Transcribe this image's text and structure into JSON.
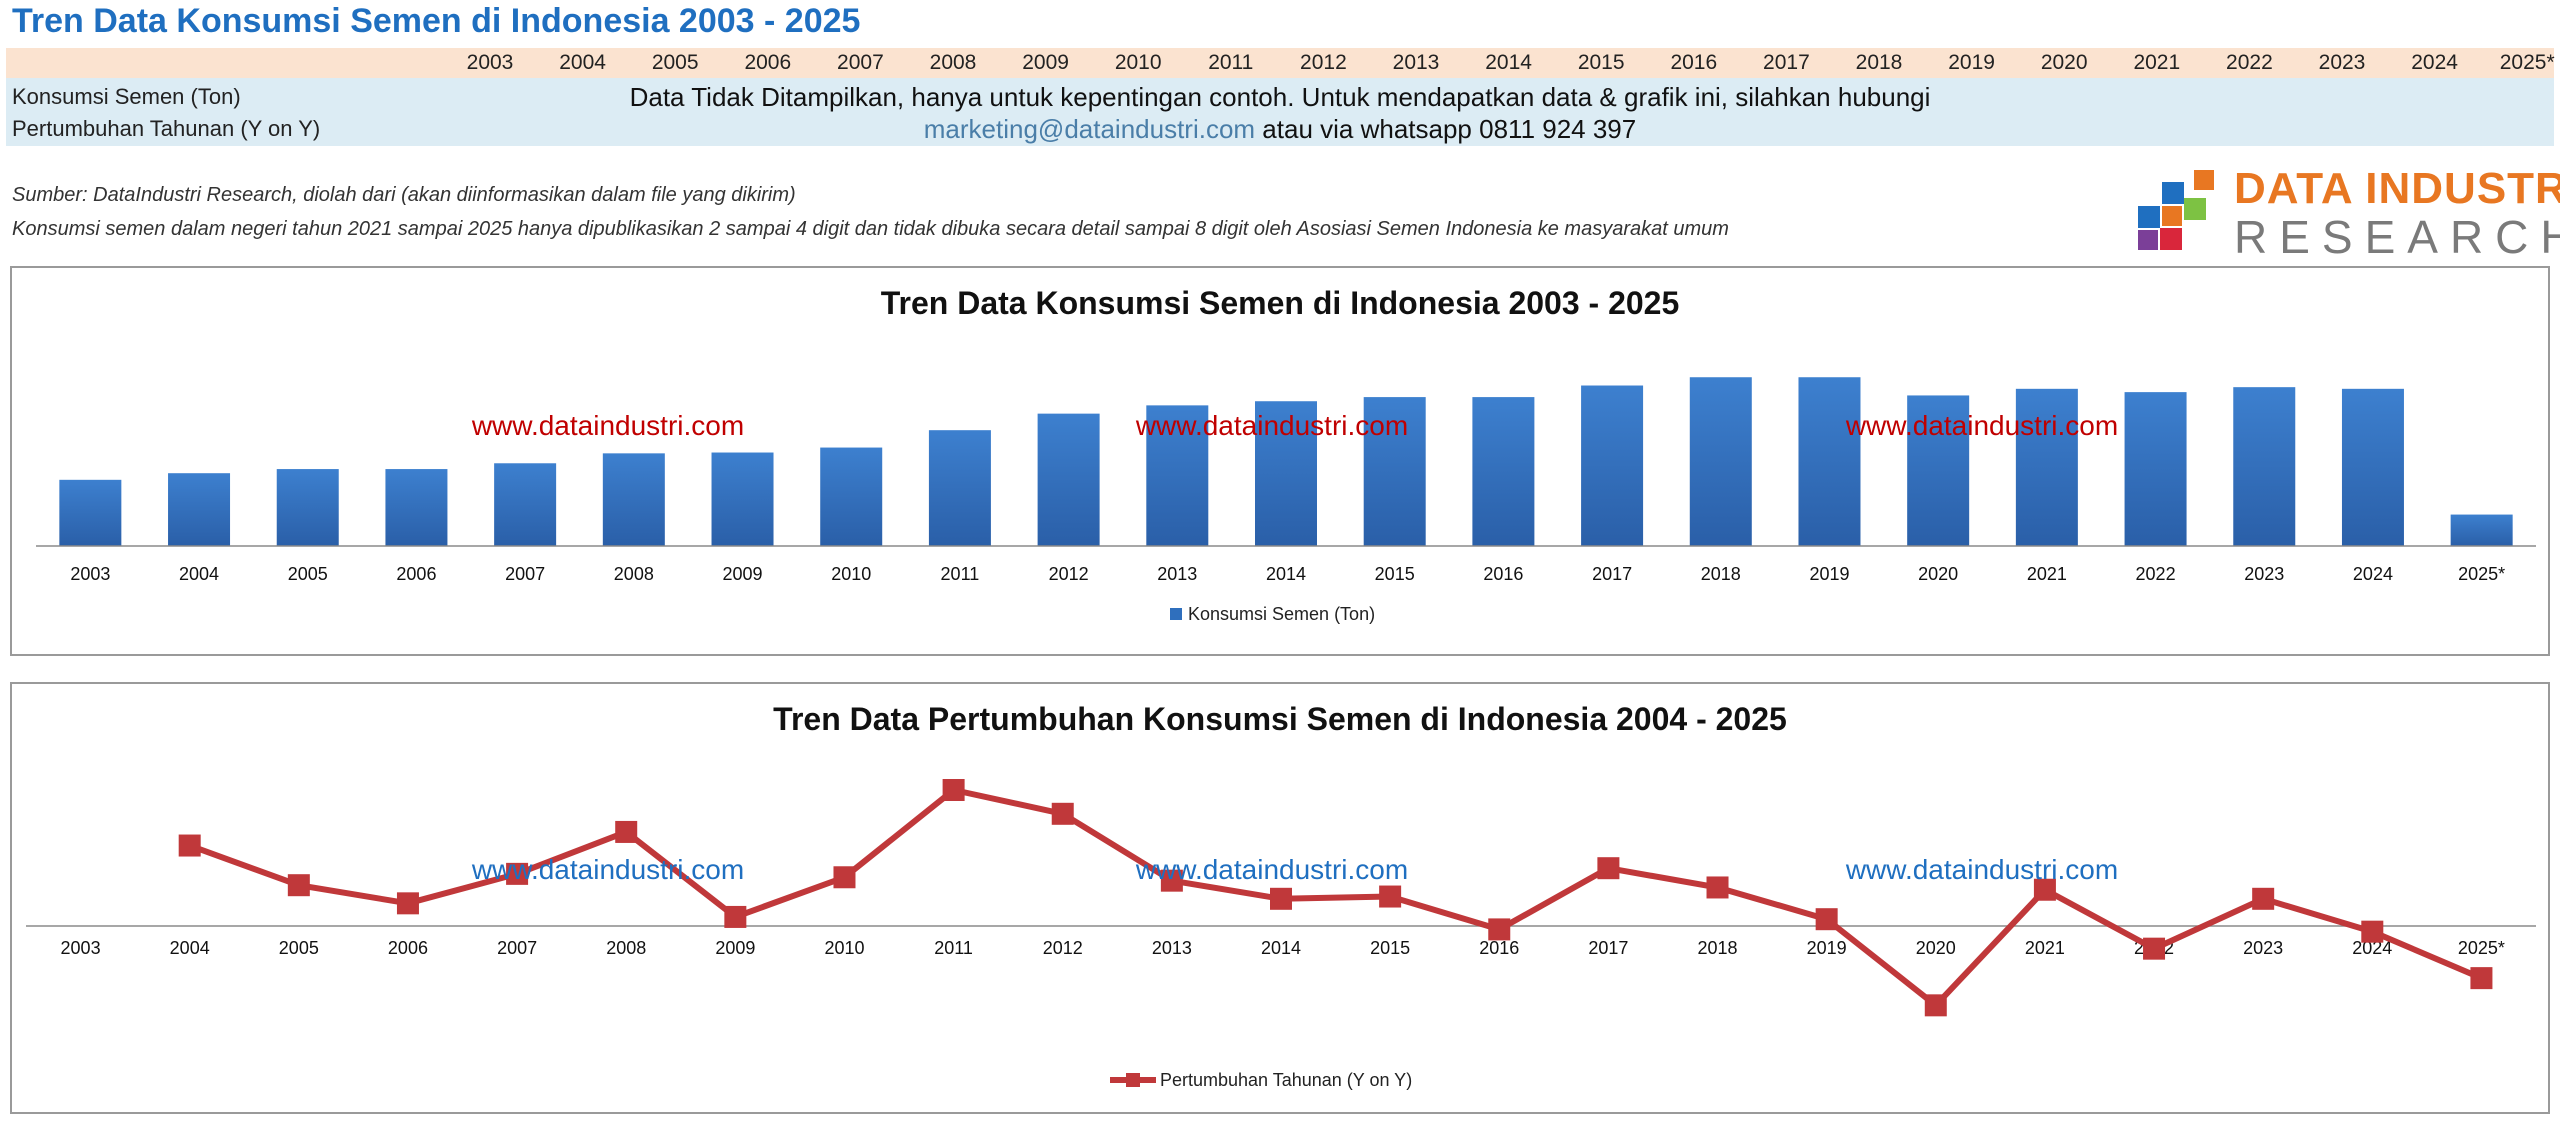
{
  "header": {
    "title": "Tren Data Konsumsi Semen di Indonesia 2003 - 2025"
  },
  "table": {
    "years": [
      "2003",
      "2004",
      "2005",
      "2006",
      "2007",
      "2008",
      "2009",
      "2010",
      "2011",
      "2012",
      "2013",
      "2014",
      "2015",
      "2016",
      "2017",
      "2018",
      "2019",
      "2020",
      "2021",
      "2022",
      "2023",
      "2024",
      "2025*"
    ],
    "row1_label": "Konsumsi Semen (Ton)",
    "row2_label": "Pertumbuhan Tahunan (Y on Y)",
    "notice_line1": "Data Tidak Ditampilkan, hanya untuk kepentingan contoh. Untuk mendapatkan data & grafik  ini, silahkan hubungi",
    "notice_email": "marketing@dataindustri.com",
    "notice_line2_rest": " atau via whatsapp 0811 924 397"
  },
  "notes": {
    "source": "Sumber: DataIndustri Research, diolah dari (akan diinformasikan dalam file yang dikirim)",
    "disclaimer": "Konsumsi semen dalam negeri tahun 2021 sampai 2025 hanya dipublikasikan  2 sampai 4 digit dan tidak dibuka secara detail sampai 8 digit oleh Asosiasi Semen Indonesia ke masyarakat umum"
  },
  "logo": {
    "line1": "DATA INDUSTRI",
    "line2": "RESEARCH",
    "colors": [
      "#e87722",
      "#1f6fc0",
      "#7dc243",
      "#7b3f98",
      "#d9263b"
    ]
  },
  "watermark": "www.dataindustri.com",
  "colors": {
    "bar": "#2f6fbd",
    "line": "#c0383a",
    "watermark_bar_chart": "#c00000",
    "watermark_line_chart": "#1f6fc0"
  },
  "chart_data": [
    {
      "type": "bar",
      "title": "Tren Data Konsumsi Semen di Indonesia 2003 - 2025",
      "categories": [
        "2003",
        "2004",
        "2005",
        "2006",
        "2007",
        "2008",
        "2009",
        "2010",
        "2011",
        "2012",
        "2013",
        "2014",
        "2015",
        "2016",
        "2017",
        "2018",
        "2019",
        "2020",
        "2021",
        "2022",
        "2023",
        "2024",
        "2025*"
      ],
      "series": [
        {
          "name": "Konsumsi Semen (Ton)",
          "values": [
            40,
            44,
            46.5,
            46.5,
            50,
            56,
            56.5,
            59.5,
            70,
            80,
            85,
            87.5,
            90,
            90,
            97,
            102,
            102,
            91,
            95,
            93,
            96,
            95,
            19
          ]
        }
      ],
      "ylim": [
        0,
        110
      ],
      "legend": "bottom-center",
      "grid": false
    },
    {
      "type": "line",
      "title": "Tren Data Pertumbuhan Konsumsi Semen di Indonesia 2004 - 2025",
      "categories": [
        "2003",
        "2004",
        "2005",
        "2006",
        "2007",
        "2008",
        "2009",
        "2010",
        "2011",
        "2012",
        "2013",
        "2014",
        "2015",
        "2016",
        "2017",
        "2018",
        "2019",
        "2020",
        "2021",
        "2022",
        "2023",
        "2024",
        "2025*"
      ],
      "series": [
        {
          "name": "Pertumbuhan Tahunan (Y on Y)",
          "values": [
            null,
            7.1,
            3.6,
            2.0,
            4.6,
            8.3,
            0.8,
            4.3,
            12.0,
            9.9,
            4.0,
            2.4,
            2.6,
            -0.3,
            5.1,
            3.4,
            0.6,
            -7.0,
            3.2,
            -2.0,
            2.4,
            -0.5,
            -4.6
          ]
        }
      ],
      "ylim": [
        -9,
        15
      ],
      "legend": "bottom-center",
      "grid": false
    }
  ]
}
